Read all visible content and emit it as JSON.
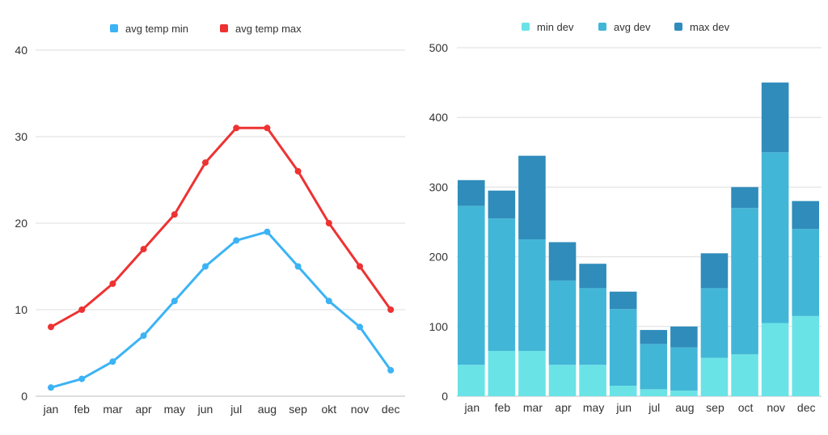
{
  "chart_data": [
    {
      "type": "line",
      "title": "",
      "xlabel": "",
      "ylabel": "",
      "categories": [
        "jan",
        "feb",
        "mar",
        "apr",
        "may",
        "jun",
        "jul",
        "aug",
        "sep",
        "okt",
        "nov",
        "dec"
      ],
      "ylim": [
        0,
        40
      ],
      "yticks": [
        0,
        10,
        20,
        30,
        40
      ],
      "grid": true,
      "legend": "top-center",
      "series": [
        {
          "name": "avg temp min",
          "color": "#3cb3f5",
          "values": [
            1,
            2,
            4,
            7,
            11,
            15,
            18,
            19,
            15,
            11,
            8,
            3
          ]
        },
        {
          "name": "avg temp max",
          "color": "#ee3232",
          "values": [
            8,
            10,
            13,
            17,
            21,
            27,
            31,
            31,
            26,
            20,
            15,
            10
          ]
        }
      ]
    },
    {
      "type": "bar",
      "stacked": true,
      "title": "",
      "xlabel": "",
      "ylabel": "",
      "categories": [
        "jan",
        "feb",
        "mar",
        "apr",
        "may",
        "jun",
        "jul",
        "aug",
        "sep",
        "oct",
        "nov",
        "dec"
      ],
      "ylim": [
        0,
        500
      ],
      "yticks": [
        0,
        100,
        200,
        300,
        400,
        500
      ],
      "grid": true,
      "legend": "top-center",
      "series": [
        {
          "name": "min dev",
          "color": "#6ae3e6",
          "values": [
            45,
            65,
            65,
            45,
            45,
            15,
            10,
            8,
            55,
            60,
            105,
            115
          ]
        },
        {
          "name": "avg dev",
          "color": "#42b6d7",
          "values": [
            228,
            190,
            160,
            121,
            110,
            110,
            65,
            62,
            100,
            210,
            245,
            125
          ]
        },
        {
          "name": "max dev",
          "color": "#2f8cbb",
          "values": [
            37,
            40,
            120,
            55,
            35,
            25,
            20,
            30,
            50,
            30,
            100,
            40
          ]
        }
      ]
    }
  ]
}
